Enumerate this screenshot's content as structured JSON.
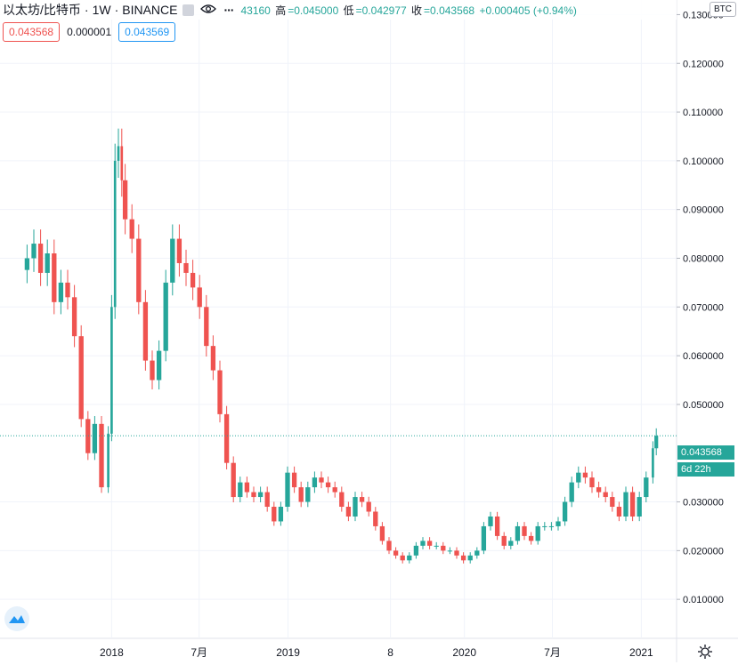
{
  "header": {
    "symbol_name": "以太坊/比特币",
    "interval": "1W",
    "exchange": "BINANCE",
    "ohlc": {
      "open_value": "43160",
      "high_label": "高",
      "high_value": "=0.045000",
      "low_label": "低",
      "low_value": "=0.042977",
      "close_label": "收",
      "close_value": "=0.043568",
      "change_value": "+0.000405 (+0.94%)"
    }
  },
  "inputs": {
    "value_red": "0.043568",
    "value_plain": "0.000001",
    "value_blue": "0.043569"
  },
  "price_axis": {
    "currency_label": "BTC",
    "current_price": "0.043568",
    "countdown": "6d 22h",
    "ticks": [
      "0.130000",
      "0.120000",
      "0.110000",
      "0.100000",
      "0.090000",
      "0.080000",
      "0.070000",
      "0.060000",
      "0.050000",
      "0.030000",
      "0.020000",
      "0.010000"
    ]
  },
  "time_axis": {
    "ticks": [
      "2018",
      "7月",
      "2019",
      "8",
      "2020",
      "7月",
      "2021"
    ]
  },
  "colors": {
    "up": "#26a69a",
    "down": "#ef5350",
    "grid": "#f0f3fa",
    "text": "#131722"
  },
  "chart_data": {
    "type": "candlestick",
    "ylim": [
      0.002,
      0.133
    ],
    "x_range": [
      "2017-05-15",
      "2021-03-15"
    ],
    "grid": true,
    "series": [
      {
        "name": "",
        "points": [
          {
            "x": "2017-07-10",
            "y": 0.08
          },
          {
            "x": "2017-07-24",
            "y": 0.083
          },
          {
            "x": "2017-08-07",
            "y": 0.077
          },
          {
            "x": "2017-08-21",
            "y": 0.081
          },
          {
            "x": "2017-09-04",
            "y": 0.071
          },
          {
            "x": "2017-09-18",
            "y": 0.075
          },
          {
            "x": "2017-10-02",
            "y": 0.072
          },
          {
            "x": "2017-10-16",
            "y": 0.064
          },
          {
            "x": "2017-10-30",
            "y": 0.047
          },
          {
            "x": "2017-11-13",
            "y": 0.04
          },
          {
            "x": "2017-11-27",
            "y": 0.046
          },
          {
            "x": "2017-12-11",
            "y": 0.033
          },
          {
            "x": "2017-12-25",
            "y": 0.044
          },
          {
            "x": "2018-01-01",
            "y": 0.07
          },
          {
            "x": "2018-01-08",
            "y": 0.1
          },
          {
            "x": "2018-01-15",
            "y": 0.103
          },
          {
            "x": "2018-01-22",
            "y": 0.096
          },
          {
            "x": "2018-01-29",
            "y": 0.088
          },
          {
            "x": "2018-02-12",
            "y": 0.084
          },
          {
            "x": "2018-02-26",
            "y": 0.071
          },
          {
            "x": "2018-03-12",
            "y": 0.059
          },
          {
            "x": "2018-03-26",
            "y": 0.055
          },
          {
            "x": "2018-04-09",
            "y": 0.061
          },
          {
            "x": "2018-04-23",
            "y": 0.075
          },
          {
            "x": "2018-05-07",
            "y": 0.084
          },
          {
            "x": "2018-05-21",
            "y": 0.079
          },
          {
            "x": "2018-06-04",
            "y": 0.077
          },
          {
            "x": "2018-06-18",
            "y": 0.074
          },
          {
            "x": "2018-07-02",
            "y": 0.07
          },
          {
            "x": "2018-07-16",
            "y": 0.062
          },
          {
            "x": "2018-07-30",
            "y": 0.057
          },
          {
            "x": "2018-08-13",
            "y": 0.048
          },
          {
            "x": "2018-08-27",
            "y": 0.038
          },
          {
            "x": "2018-09-10",
            "y": 0.031
          },
          {
            "x": "2018-09-24",
            "y": 0.034
          },
          {
            "x": "2018-10-08",
            "y": 0.032
          },
          {
            "x": "2018-10-22",
            "y": 0.031
          },
          {
            "x": "2018-11-05",
            "y": 0.032
          },
          {
            "x": "2018-11-19",
            "y": 0.029
          },
          {
            "x": "2018-12-03",
            "y": 0.026
          },
          {
            "x": "2018-12-17",
            "y": 0.029
          },
          {
            "x": "2018-12-31",
            "y": 0.036
          },
          {
            "x": "2019-01-14",
            "y": 0.033
          },
          {
            "x": "2019-01-28",
            "y": 0.03
          },
          {
            "x": "2019-02-11",
            "y": 0.033
          },
          {
            "x": "2019-02-25",
            "y": 0.035
          },
          {
            "x": "2019-03-11",
            "y": 0.034
          },
          {
            "x": "2019-03-25",
            "y": 0.033
          },
          {
            "x": "2019-04-08",
            "y": 0.032
          },
          {
            "x": "2019-04-22",
            "y": 0.029
          },
          {
            "x": "2019-05-06",
            "y": 0.027
          },
          {
            "x": "2019-05-20",
            "y": 0.031
          },
          {
            "x": "2019-06-03",
            "y": 0.03
          },
          {
            "x": "2019-06-17",
            "y": 0.028
          },
          {
            "x": "2019-07-01",
            "y": 0.025
          },
          {
            "x": "2019-07-15",
            "y": 0.022
          },
          {
            "x": "2019-07-29",
            "y": 0.02
          },
          {
            "x": "2019-08-12",
            "y": 0.019
          },
          {
            "x": "2019-08-26",
            "y": 0.018
          },
          {
            "x": "2019-09-09",
            "y": 0.019
          },
          {
            "x": "2019-09-23",
            "y": 0.021
          },
          {
            "x": "2019-10-07",
            "y": 0.022
          },
          {
            "x": "2019-10-21",
            "y": 0.021
          },
          {
            "x": "2019-11-04",
            "y": 0.021
          },
          {
            "x": "2019-11-18",
            "y": 0.02
          },
          {
            "x": "2019-12-02",
            "y": 0.02
          },
          {
            "x": "2019-12-16",
            "y": 0.019
          },
          {
            "x": "2019-12-30",
            "y": 0.018
          },
          {
            "x": "2020-01-13",
            "y": 0.019
          },
          {
            "x": "2020-01-27",
            "y": 0.02
          },
          {
            "x": "2020-02-10",
            "y": 0.025
          },
          {
            "x": "2020-02-24",
            "y": 0.027
          },
          {
            "x": "2020-03-09",
            "y": 0.023
          },
          {
            "x": "2020-03-23",
            "y": 0.021
          },
          {
            "x": "2020-04-06",
            "y": 0.022
          },
          {
            "x": "2020-04-20",
            "y": 0.025
          },
          {
            "x": "2020-05-04",
            "y": 0.023
          },
          {
            "x": "2020-05-18",
            "y": 0.022
          },
          {
            "x": "2020-06-01",
            "y": 0.025
          },
          {
            "x": "2020-06-15",
            "y": 0.025
          },
          {
            "x": "2020-06-29",
            "y": 0.025
          },
          {
            "x": "2020-07-13",
            "y": 0.026
          },
          {
            "x": "2020-07-27",
            "y": 0.03
          },
          {
            "x": "2020-08-10",
            "y": 0.034
          },
          {
            "x": "2020-08-24",
            "y": 0.036
          },
          {
            "x": "2020-09-07",
            "y": 0.035
          },
          {
            "x": "2020-09-21",
            "y": 0.033
          },
          {
            "x": "2020-10-05",
            "y": 0.032
          },
          {
            "x": "2020-10-19",
            "y": 0.031
          },
          {
            "x": "2020-11-02",
            "y": 0.029
          },
          {
            "x": "2020-11-16",
            "y": 0.027
          },
          {
            "x": "2020-11-30",
            "y": 0.032
          },
          {
            "x": "2020-12-14",
            "y": 0.027
          },
          {
            "x": "2020-12-28",
            "y": 0.031
          },
          {
            "x": "2021-01-11",
            "y": 0.035
          },
          {
            "x": "2021-01-25",
            "y": 0.041
          },
          {
            "x": "2021-02-01",
            "y": 0.043568
          }
        ]
      }
    ]
  }
}
